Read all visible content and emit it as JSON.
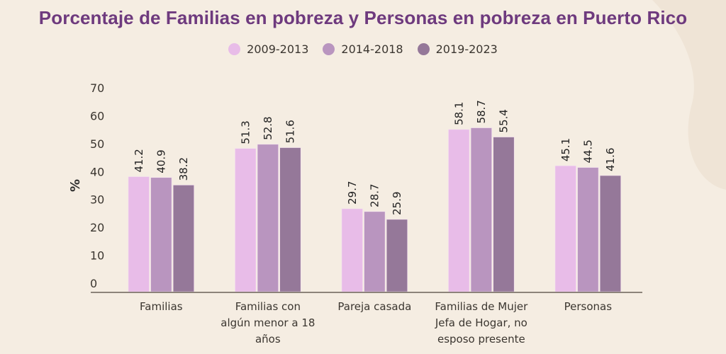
{
  "chart_data": {
    "type": "bar",
    "title": "Porcentaje de Familias en pobreza y Personas en pobreza en Puerto Rico",
    "xlabel": "",
    "ylabel": "%",
    "ylim": [
      0,
      70
    ],
    "yticks": [
      0,
      10,
      20,
      30,
      40,
      50,
      60,
      70
    ],
    "grid": false,
    "legend_position": "top-center",
    "categories": [
      [
        "Familias"
      ],
      [
        "Familias con",
        "algún menor a 18",
        "años"
      ],
      [
        "Pareja casada"
      ],
      [
        "Familias de Mujer",
        "Jefa de Hogar, no",
        "esposo presente"
      ],
      [
        "Personas"
      ]
    ],
    "series": [
      {
        "name": "2009-2013",
        "color": "#e8bce8",
        "values": [
          41.2,
          51.3,
          29.7,
          58.1,
          45.1
        ]
      },
      {
        "name": "2014-2018",
        "color": "#b995bf",
        "values": [
          40.9,
          52.8,
          28.7,
          58.7,
          44.5
        ]
      },
      {
        "name": "2019-2023",
        "color": "#957899",
        "values": [
          38.2,
          51.6,
          25.9,
          55.4,
          41.6
        ]
      }
    ],
    "axis_color": "#6b6258"
  }
}
